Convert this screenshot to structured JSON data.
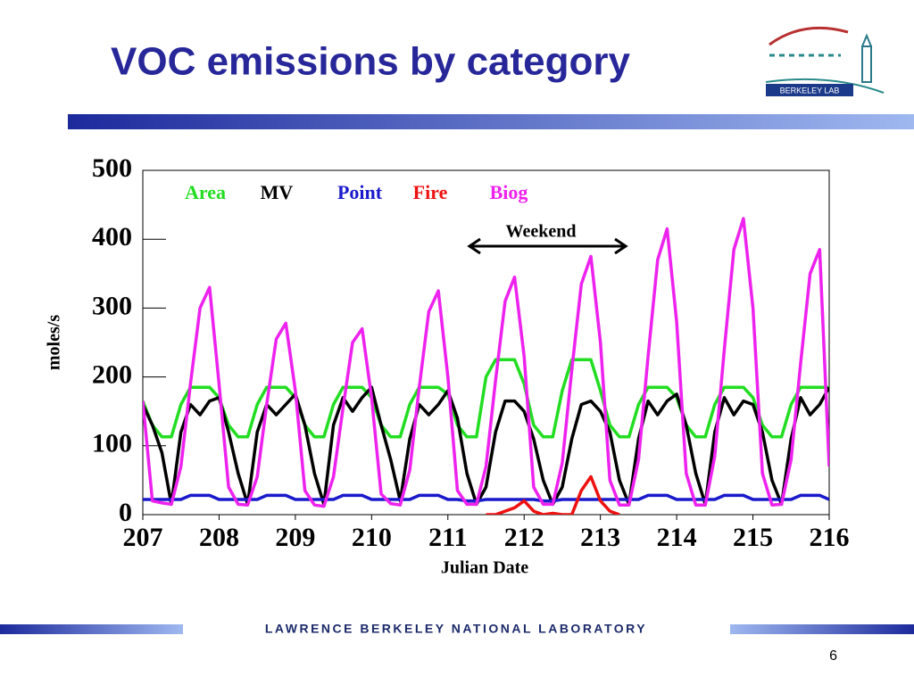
{
  "header": {
    "logo_text": "Berkeley Lab"
  },
  "footer": {
    "text": "Lawrence Berkeley National Laboratory",
    "page": "6"
  },
  "chart_data": {
    "type": "line",
    "title": "VOC emissions by category",
    "xlabel": "Julian Date",
    "ylabel": "moles/s",
    "annotation": "Weekend",
    "xlim": [
      207,
      216
    ],
    "ylim": [
      0,
      500
    ],
    "xticks": [
      207,
      208,
      209,
      210,
      211,
      212,
      213,
      214,
      215,
      216
    ],
    "yticks": [
      0,
      100,
      200,
      300,
      400,
      500
    ],
    "x": [
      207,
      207.125,
      207.25,
      207.375,
      207.5,
      207.625,
      207.75,
      207.875,
      208,
      208.125,
      208.25,
      208.375,
      208.5,
      208.625,
      208.75,
      208.875,
      209,
      209.125,
      209.25,
      209.375,
      209.5,
      209.625,
      209.75,
      209.875,
      210,
      210.125,
      210.25,
      210.375,
      210.5,
      210.625,
      210.75,
      210.875,
      211,
      211.125,
      211.25,
      211.375,
      211.5,
      211.625,
      211.75,
      211.875,
      212,
      212.125,
      212.25,
      212.375,
      212.5,
      212.625,
      212.75,
      212.875,
      213,
      213.125,
      213.25,
      213.375,
      213.5,
      213.625,
      213.75,
      213.875,
      214,
      214.125,
      214.25,
      214.375,
      214.5,
      214.625,
      214.75,
      214.875,
      215,
      215.125,
      215.25,
      215.375,
      215.5,
      215.625,
      215.75,
      215.875,
      216
    ],
    "series": [
      {
        "name": "Area",
        "color": "#22dd22",
        "values": [
          165,
          130,
          113,
          113,
          160,
          185,
          185,
          185,
          170,
          130,
          113,
          113,
          160,
          185,
          185,
          185,
          170,
          130,
          113,
          113,
          160,
          185,
          185,
          185,
          170,
          130,
          113,
          113,
          160,
          185,
          185,
          185,
          175,
          130,
          113,
          113,
          200,
          225,
          225,
          225,
          190,
          130,
          113,
          113,
          180,
          225,
          225,
          225,
          180,
          130,
          113,
          113,
          160,
          185,
          185,
          185,
          170,
          130,
          113,
          113,
          160,
          185,
          185,
          185,
          170,
          130,
          113,
          113,
          160,
          185,
          185,
          185,
          185
        ]
      },
      {
        "name": "MV",
        "color": "#000000",
        "values": [
          160,
          130,
          90,
          15,
          120,
          160,
          145,
          165,
          170,
          120,
          60,
          15,
          120,
          160,
          145,
          160,
          175,
          130,
          60,
          15,
          130,
          170,
          150,
          170,
          185,
          130,
          80,
          20,
          110,
          160,
          145,
          160,
          180,
          140,
          60,
          15,
          40,
          120,
          165,
          165,
          150,
          110,
          50,
          15,
          40,
          110,
          160,
          165,
          150,
          120,
          50,
          15,
          110,
          165,
          145,
          165,
          175,
          130,
          60,
          15,
          120,
          170,
          145,
          165,
          160,
          120,
          50,
          15,
          110,
          170,
          145,
          160,
          185
        ]
      },
      {
        "name": "Point",
        "color": "#1a1acc",
        "values": [
          22,
          22,
          22,
          22,
          22,
          28,
          28,
          28,
          22,
          22,
          22,
          22,
          22,
          28,
          28,
          28,
          22,
          22,
          22,
          22,
          22,
          28,
          28,
          28,
          22,
          22,
          22,
          22,
          22,
          28,
          28,
          28,
          22,
          22,
          20,
          20,
          22,
          22,
          22,
          22,
          22,
          22,
          20,
          20,
          22,
          22,
          22,
          22,
          22,
          22,
          22,
          22,
          22,
          28,
          28,
          28,
          22,
          22,
          22,
          22,
          22,
          28,
          28,
          28,
          22,
          22,
          22,
          22,
          22,
          28,
          28,
          28,
          22
        ]
      },
      {
        "name": "Fire",
        "color": "#ee1111",
        "values": [
          null,
          null,
          null,
          null,
          null,
          null,
          null,
          null,
          null,
          null,
          null,
          null,
          null,
          null,
          null,
          null,
          null,
          null,
          null,
          null,
          null,
          null,
          null,
          null,
          null,
          null,
          null,
          null,
          null,
          null,
          null,
          null,
          null,
          null,
          null,
          null,
          0,
          0,
          5,
          10,
          20,
          5,
          0,
          2,
          0,
          0,
          35,
          55,
          20,
          5,
          0,
          null,
          null,
          null,
          null,
          null,
          null,
          null,
          null,
          null,
          null,
          null,
          null,
          null,
          null,
          null,
          null,
          null,
          null,
          null,
          null,
          null,
          null
        ]
      },
      {
        "name": "Biog",
        "color": "#ee22ee",
        "values": [
          165,
          20,
          17,
          15,
          70,
          190,
          300,
          330,
          190,
          40,
          15,
          14,
          55,
          160,
          255,
          278,
          180,
          35,
          14,
          12,
          55,
          155,
          250,
          270,
          170,
          30,
          16,
          14,
          65,
          185,
          295,
          325,
          200,
          35,
          15,
          15,
          70,
          195,
          310,
          345,
          230,
          40,
          15,
          15,
          75,
          210,
          335,
          375,
          250,
          50,
          14,
          14,
          80,
          230,
          370,
          415,
          280,
          60,
          14,
          14,
          85,
          240,
          385,
          430,
          300,
          60,
          14,
          15,
          80,
          220,
          350,
          385,
          70
        ]
      }
    ]
  }
}
